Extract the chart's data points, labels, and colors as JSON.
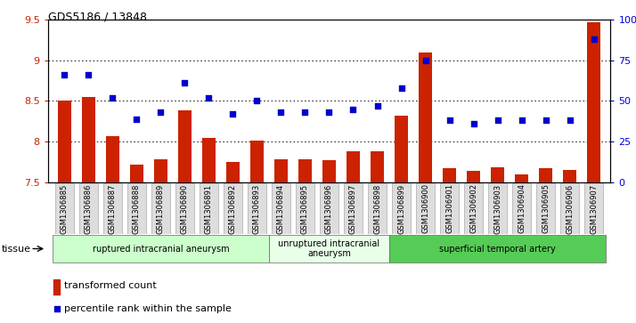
{
  "title": "GDS5186 / 13848",
  "samples": [
    "GSM1306885",
    "GSM1306886",
    "GSM1306887",
    "GSM1306888",
    "GSM1306889",
    "GSM1306890",
    "GSM1306891",
    "GSM1306892",
    "GSM1306893",
    "GSM1306894",
    "GSM1306895",
    "GSM1306896",
    "GSM1306897",
    "GSM1306898",
    "GSM1306899",
    "GSM1306900",
    "GSM1306901",
    "GSM1306902",
    "GSM1306903",
    "GSM1306904",
    "GSM1306905",
    "GSM1306906",
    "GSM1306907"
  ],
  "bar_values": [
    8.5,
    8.55,
    8.07,
    7.72,
    7.78,
    8.38,
    8.05,
    7.75,
    8.01,
    7.79,
    7.78,
    7.77,
    7.88,
    7.88,
    8.32,
    9.09,
    7.68,
    7.64,
    7.69,
    7.6,
    7.68,
    7.65,
    9.47
  ],
  "dot_values": [
    66,
    66,
    52,
    39,
    43,
    61,
    52,
    42,
    50,
    43,
    43,
    43,
    45,
    47,
    58,
    75,
    38,
    36,
    38,
    38,
    38,
    38,
    88
  ],
  "ylim_left": [
    7.5,
    9.5
  ],
  "ylim_right": [
    0,
    100
  ],
  "yticks_left": [
    7.5,
    8.0,
    8.5,
    9.0,
    9.5
  ],
  "yticks_right": [
    0,
    25,
    50,
    75,
    100
  ],
  "ytick_labels_right": [
    "0",
    "25",
    "50",
    "75",
    "100%"
  ],
  "bar_color": "#cc2200",
  "dot_color": "#0000cc",
  "plot_bg": "#ffffff",
  "groups": [
    {
      "label": "ruptured intracranial aneurysm",
      "start": 0,
      "end": 9,
      "color": "#ccffcc"
    },
    {
      "label": "unruptured intracranial\naneurysm",
      "start": 9,
      "end": 14,
      "color": "#e8ffe8"
    },
    {
      "label": "superficial temporal artery",
      "start": 14,
      "end": 23,
      "color": "#55cc55"
    }
  ],
  "tissue_label": "tissue",
  "legend_bar_label": "transformed count",
  "legend_dot_label": "percentile rank within the sample"
}
